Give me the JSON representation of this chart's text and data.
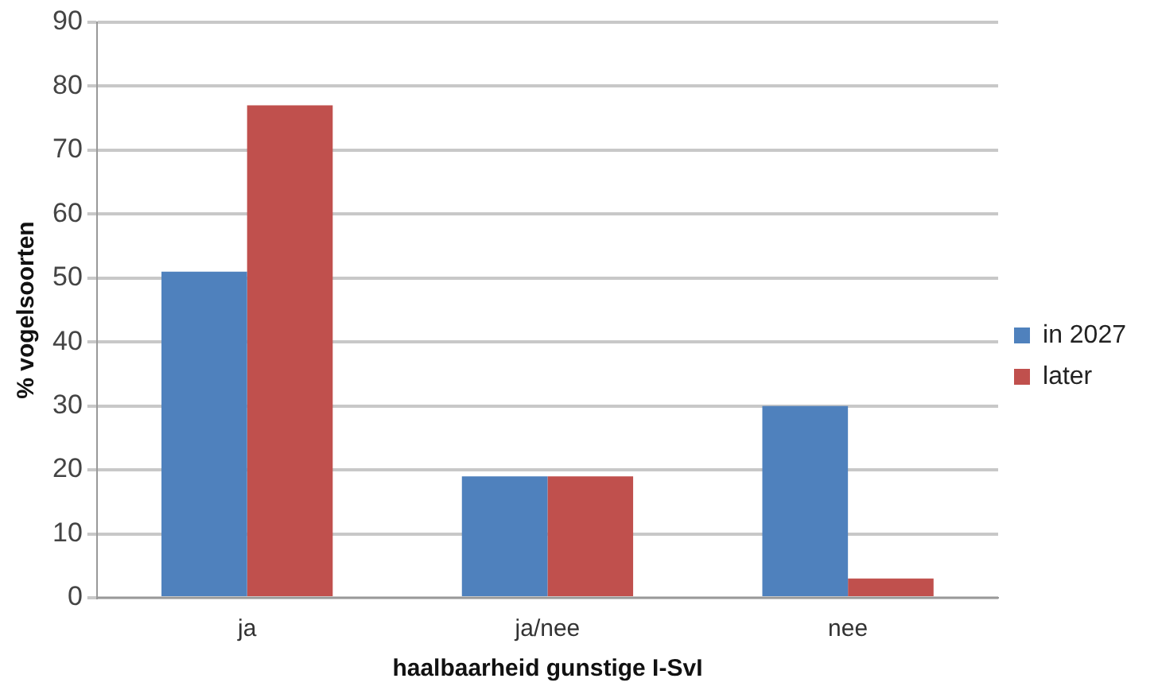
{
  "chart_data": {
    "type": "bar",
    "xlabel": "haalbaarheid gunstige I-SvI",
    "ylabel": "% vogelsoorten",
    "categories": [
      "ja",
      "ja/nee",
      "nee"
    ],
    "series": [
      {
        "name": "in 2027",
        "color": "#4f81bd",
        "values": [
          51,
          19,
          30
        ]
      },
      {
        "name": "later",
        "color": "#c0504d",
        "values": [
          77,
          19,
          3
        ]
      }
    ],
    "ylim": [
      0,
      90
    ],
    "yticks": [
      0,
      10,
      20,
      30,
      40,
      50,
      60,
      70,
      80,
      90
    ],
    "grid": "y",
    "legend": "right"
  }
}
